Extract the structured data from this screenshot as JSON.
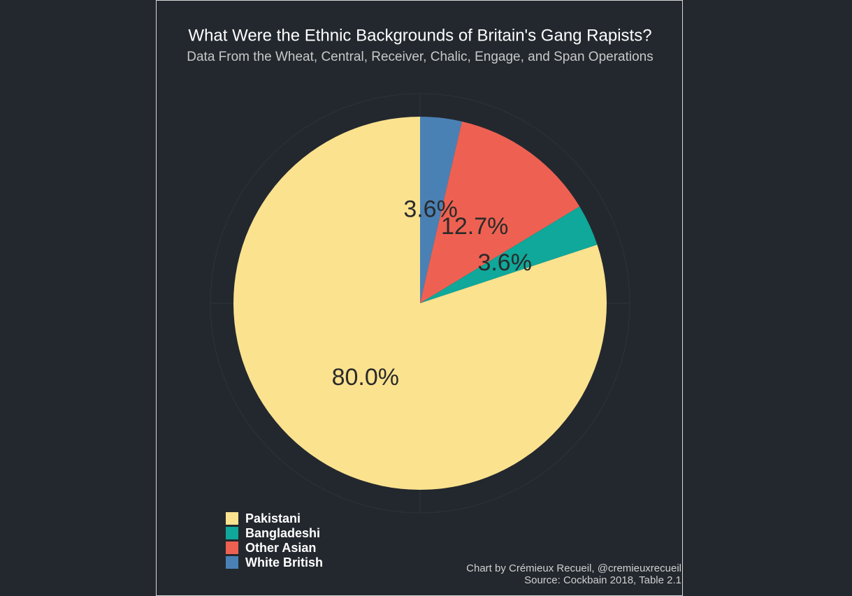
{
  "chart_data": {
    "type": "pie",
    "title": "What Were the Ethnic Backgrounds of Britain's Gang Rapists?",
    "subtitle": "Data From the Wheat, Central, Receiver, Chalic, Engage, and Span Operations",
    "series": [
      {
        "name": "Pakistani",
        "color": "#fbe28f",
        "values": [
          80.0
        ],
        "value_labels": [
          "80.0%"
        ]
      },
      {
        "name": "Bangladeshi",
        "color": "#0fa89a",
        "values": [
          3.6
        ],
        "value_labels": [
          "3.6%"
        ]
      },
      {
        "name": "Other Asian",
        "color": "#ee6152",
        "values": [
          12.7
        ],
        "value_labels": [
          "12.7%"
        ]
      },
      {
        "name": "White British",
        "color": "#4a81b5",
        "values": [
          3.6
        ],
        "value_labels": [
          "3.6%"
        ]
      }
    ],
    "captions": [
      "Chart by Crémieux Recueil, @cremieuxrecueil",
      "Source: Cockbain 2018, Table 2.1"
    ]
  }
}
